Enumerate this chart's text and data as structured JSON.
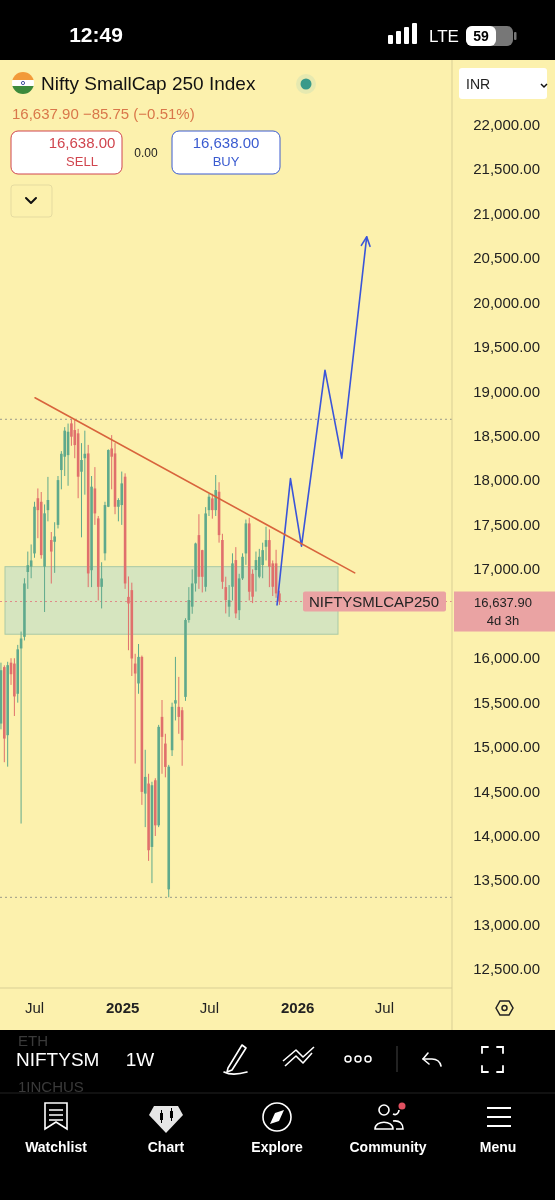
{
  "chart_data": {
    "type": "candlestick",
    "title": "Nifty SmallCap 250 Index",
    "subtitle": "16,637.90 −85.75 (−0.51%)",
    "x": [
      "2024-04-22",
      "2024-04-29",
      "2024-05-06",
      "2024-05-13",
      "2024-05-20",
      "2024-05-27",
      "2024-06-03",
      "2024-06-10",
      "2024-06-17",
      "2024-06-24",
      "2024-07-01",
      "2024-07-08",
      "2024-07-15",
      "2024-07-22",
      "2024-07-29",
      "2024-08-05",
      "2024-08-12",
      "2024-08-19",
      "2024-08-26",
      "2024-09-02",
      "2024-09-09",
      "2024-09-16",
      "2024-09-23",
      "2024-09-30",
      "2024-10-07",
      "2024-10-14",
      "2024-10-21",
      "2024-10-28",
      "2024-11-04",
      "2024-11-11",
      "2024-11-18",
      "2024-11-25",
      "2024-12-02",
      "2024-12-09",
      "2024-12-16",
      "2024-12-23",
      "2024-12-30",
      "2025-01-06",
      "2025-01-13",
      "2025-01-20",
      "2025-01-27",
      "2025-02-03",
      "2025-02-10",
      "2025-02-17",
      "2025-02-24",
      "2025-03-03",
      "2025-03-10",
      "2025-03-17",
      "2025-03-24",
      "2025-03-31",
      "2025-04-07",
      "2025-04-14",
      "2025-04-21",
      "2025-04-28",
      "2025-05-05",
      "2025-05-12",
      "2025-05-19",
      "2025-05-26",
      "2025-06-02",
      "2025-06-09",
      "2025-06-16",
      "2025-06-23",
      "2025-06-30",
      "2025-07-07",
      "2025-07-14",
      "2025-07-21",
      "2025-07-28",
      "2025-08-04",
      "2025-08-11",
      "2025-08-18",
      "2025-08-25",
      "2025-09-01",
      "2025-09-08",
      "2025-09-15",
      "2025-09-22",
      "2025-09-29",
      "2025-10-06",
      "2025-10-13",
      "2025-10-20",
      "2025-10-27",
      "2025-11-03",
      "2025-11-10",
      "2025-11-17",
      "2025-11-24"
    ],
    "ohlc": [
      [
        15265,
        15950,
        15200,
        15865
      ],
      [
        15900,
        15920,
        14830,
        15096
      ],
      [
        15134,
        15960,
        14780,
        15922
      ],
      [
        15950,
        16000,
        15700,
        15820
      ],
      [
        15940,
        16000,
        15350,
        15570
      ],
      [
        15600,
        16150,
        15500,
        16100
      ],
      [
        16110,
        16300,
        14140,
        16222
      ],
      [
        16241,
        16900,
        16200,
        16841
      ],
      [
        16970,
        17200,
        16780,
        17047
      ],
      [
        17030,
        17280,
        16900,
        17100
      ],
      [
        17179,
        17760,
        17130,
        17704
      ],
      [
        17800,
        17910,
        17350,
        17666
      ],
      [
        17760,
        17870,
        17120,
        17160
      ],
      [
        17030,
        17730,
        16520,
        17630
      ],
      [
        17666,
        18040,
        17540,
        17780
      ],
      [
        17330,
        17420,
        16840,
        17200
      ],
      [
        17310,
        17530,
        16960,
        17370
      ],
      [
        17500,
        18050,
        17460,
        18004
      ],
      [
        18117,
        18330,
        17900,
        18300
      ],
      [
        18267,
        18600,
        18050,
        18560
      ],
      [
        18285,
        18640,
        17940,
        18548
      ],
      [
        18642,
        18688,
        18390,
        18492
      ],
      [
        18567,
        18680,
        18250,
        18398
      ],
      [
        18530,
        18580,
        17800,
        18042
      ],
      [
        18098,
        18420,
        17360,
        18230
      ],
      [
        18250,
        18560,
        17840,
        18300
      ],
      [
        18304,
        18400,
        16800,
        16954
      ],
      [
        16990,
        18050,
        16800,
        17930
      ],
      [
        17910,
        18150,
        17500,
        17629
      ],
      [
        17573,
        17600,
        16650,
        16803
      ],
      [
        16803,
        17080,
        16560,
        16897
      ],
      [
        17180,
        17760,
        17100,
        17723
      ],
      [
        17704,
        18350,
        17700,
        18342
      ],
      [
        18360,
        18510,
        17900,
        18267
      ],
      [
        18304,
        18420,
        17620,
        17704
      ],
      [
        17704,
        17800,
        17540,
        17780
      ],
      [
        17723,
        18100,
        17500,
        17967
      ],
      [
        18042,
        18080,
        16780,
        16841
      ],
      [
        16690,
        16920,
        16090,
        16616
      ],
      [
        16766,
        16850,
        15800,
        15997
      ],
      [
        15940,
        16050,
        14815,
        15828
      ],
      [
        15716,
        16160,
        15600,
        16015
      ],
      [
        16015,
        16030,
        14350,
        14496
      ],
      [
        14477,
        14970,
        14100,
        14665
      ],
      [
        14590,
        14700,
        13720,
        13840
      ],
      [
        13877,
        14610,
        13470,
        14571
      ],
      [
        14627,
        14650,
        14000,
        14120
      ],
      [
        14120,
        15250,
        14100,
        15228
      ],
      [
        15340,
        15530,
        14700,
        15115
      ],
      [
        15040,
        15150,
        14660,
        14777
      ],
      [
        13400,
        14800,
        13310,
        14780
      ],
      [
        14965,
        15500,
        14900,
        15453
      ],
      [
        15490,
        16015,
        15300,
        15528
      ],
      [
        15453,
        15790,
        15150,
        15340
      ],
      [
        15415,
        15450,
        14790,
        15078
      ],
      [
        15565,
        16450,
        15520,
        16430
      ],
      [
        16430,
        16800,
        16400,
        16655
      ],
      [
        16580,
        17000,
        16500,
        16841
      ],
      [
        16841,
        17300,
        16750,
        17291
      ],
      [
        17385,
        17620,
        16780,
        16916
      ],
      [
        17216,
        17220,
        16740,
        16916
      ],
      [
        16803,
        17700,
        16750,
        17629
      ],
      [
        17666,
        17850,
        17600,
        17817
      ],
      [
        17798,
        17850,
        17570,
        17666
      ],
      [
        17666,
        18061,
        17600,
        17892
      ],
      [
        17873,
        17980,
        17300,
        17385
      ],
      [
        17330,
        17400,
        16780,
        16860
      ],
      [
        16800,
        16917,
        16504,
        16654
      ],
      [
        16580,
        16823,
        16466,
        16654
      ],
      [
        16804,
        17180,
        16650,
        17067
      ],
      [
        17104,
        17250,
        16450,
        16504
      ],
      [
        16540,
        16950,
        16430,
        16898
      ],
      [
        16898,
        17180,
        16880,
        17141
      ],
      [
        17179,
        17560,
        17050,
        17517
      ],
      [
        17517,
        17580,
        16650,
        16748
      ],
      [
        16950,
        17000,
        16620,
        16692
      ],
      [
        16992,
        17200,
        16750,
        17104
      ],
      [
        16917,
        17230,
        16900,
        17141
      ],
      [
        17048,
        17300,
        16900,
        17216
      ],
      [
        17254,
        17479,
        17100,
        17329
      ],
      [
        17329,
        17450,
        16800,
        17029
      ],
      [
        17067,
        17100,
        16700,
        16804
      ],
      [
        17067,
        17220,
        16680,
        16729
      ],
      [
        16729,
        16760,
        16600,
        16637.9
      ]
    ],
    "colors": [
      "#5fa98c",
      "#e0706c",
      "#5fa98c",
      "#e0706c",
      "#e0706c",
      "#5fa98c",
      "#5fa98c",
      "#5fa98c",
      "#5fa98c",
      "#5fa98c",
      "#5fa98c",
      "#e0706c",
      "#e0706c",
      "#5fa98c",
      "#5fa98c",
      "#e0706c",
      "#5fa98c",
      "#5fa98c",
      "#5fa98c",
      "#5fa98c",
      "#5fa98c",
      "#e0706c",
      "#e0706c",
      "#e0706c",
      "#5fa98c",
      "#5fa98c",
      "#e0706c",
      "#5fa98c",
      "#e0706c",
      "#e0706c",
      "#5fa98c",
      "#5fa98c",
      "#5fa98c",
      "#e0706c",
      "#e0706c",
      "#5fa98c",
      "#5fa98c",
      "#e0706c",
      "#e0706c",
      "#e0706c",
      "#e0706c",
      "#5fa98c",
      "#e0706c",
      "#5fa98c",
      "#e0706c",
      "#5fa98c",
      "#e0706c",
      "#5fa98c",
      "#e0706c",
      "#e0706c",
      "#5fa98c",
      "#5fa98c",
      "#5fa98c",
      "#e0706c",
      "#e0706c",
      "#5fa98c",
      "#5fa98c",
      "#5fa98c",
      "#5fa98c",
      "#e0706c",
      "#e0706c",
      "#5fa98c",
      "#5fa98c",
      "#e0706c",
      "#5fa98c",
      "#e0706c",
      "#e0706c",
      "#e0706c",
      "#5fa98c",
      "#5fa98c",
      "#e0706c",
      "#5fa98c",
      "#5fa98c",
      "#5fa98c",
      "#e0706c",
      "#e0706c",
      "#5fa98c",
      "#5fa98c",
      "#5fa98c",
      "#5fa98c",
      "#e0706c",
      "#e0706c",
      "#e0706c",
      "#e0706c"
    ],
    "series": [
      {
        "type": "line",
        "color": "#3a55d9",
        "x": [
          "2025-11-19",
          "2025-12-17",
          "2026-01-09",
          "2026-02-27",
          "2026-04-03",
          "2026-05-25"
        ],
        "values": [
          16600,
          18020,
          17260,
          19240,
          18250,
          20740
        ]
      },
      {
        "type": "line",
        "color": "#d8643c",
        "x": [
          "2024-07-02",
          "2026-04-30"
        ],
        "values": [
          18930,
          16960
        ]
      }
    ],
    "bands": [
      {
        "axis": "y",
        "from": 16270,
        "to": 17030,
        "color": "#cfe3c2"
      }
    ],
    "ref_lines": [
      {
        "axis": "y",
        "value": 18688,
        "color": "#9a9a8a",
        "line_style": "dotted"
      },
      {
        "axis": "y",
        "value": 13310,
        "color": "#9a9a8a",
        "line_style": "dotted"
      },
      {
        "axis": "y",
        "value": 16637.9,
        "color": "#e08a8a",
        "line_style": "dotted",
        "label": "NIFTYSMLCAP250"
      }
    ],
    "xlim": [
      "2024-04-20",
      "2026-11-19"
    ],
    "xticks": [
      {
        "value": "2024-07-01",
        "label": "Jul"
      },
      {
        "value": "2025-01-01",
        "label": "2025"
      },
      {
        "value": "2025-07-01",
        "label": "Jul"
      },
      {
        "value": "2026-01-01",
        "label": "2026"
      },
      {
        "value": "2026-07-01",
        "label": "Jul"
      }
    ],
    "ylim": [
      12290,
      22730
    ],
    "yticks": [
      {
        "value": 12500,
        "label": "12,500.00"
      },
      {
        "value": 13000,
        "label": "13,000.00"
      },
      {
        "value": 13500,
        "label": "13,500.00"
      },
      {
        "value": 14000,
        "label": "14,000.00"
      },
      {
        "value": 14500,
        "label": "14,500.00"
      },
      {
        "value": 15000,
        "label": "15,000.00"
      },
      {
        "value": 15500,
        "label": "15,500.00"
      },
      {
        "value": 16000,
        "label": "16,000.00"
      },
      {
        "value": 17000,
        "label": "17,000.00"
      },
      {
        "value": 17500,
        "label": "17,500.00"
      },
      {
        "value": 18000,
        "label": "18,000.00"
      },
      {
        "value": 18500,
        "label": "18,500.00"
      },
      {
        "value": 19000,
        "label": "19,000.00"
      },
      {
        "value": 19500,
        "label": "19,500.00"
      },
      {
        "value": 20000,
        "label": "20,000.00"
      },
      {
        "value": 20500,
        "label": "20,500.00"
      },
      {
        "value": 21000,
        "label": "21,000.00"
      },
      {
        "value": 21500,
        "label": "21,500.00"
      },
      {
        "value": 22000,
        "label": "22,000.00"
      }
    ],
    "marker": "none",
    "annotations": [
      "12:49",
      "LTE",
      "59",
      "16,638.00",
      "SELL",
      "0.00",
      "16,638.00",
      "BUY",
      "INR",
      "16,637.90",
      "4d 3h",
      "ETH",
      "NIFTYSM",
      "1W",
      "1INCHUS",
      "Watchlist",
      "Chart",
      "Explore",
      "Community",
      "Menu"
    ]
  }
}
